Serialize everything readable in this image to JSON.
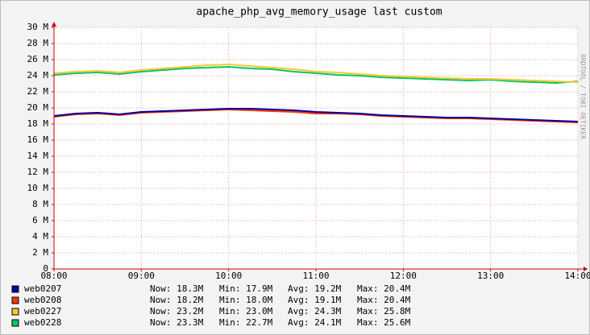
{
  "chart_data": {
    "type": "line",
    "title": "apache_php_avg_memory_usage last custom",
    "watermark": "RRDTOOL / TOBI OETIKER",
    "x": [
      "08:00",
      "08:15",
      "08:30",
      "08:45",
      "09:00",
      "09:15",
      "09:30",
      "09:45",
      "10:00",
      "10:15",
      "10:30",
      "10:45",
      "11:00",
      "11:15",
      "11:30",
      "11:45",
      "12:00",
      "12:15",
      "12:30",
      "12:45",
      "13:00",
      "13:15",
      "13:30",
      "13:45",
      "14:00"
    ],
    "xlim": [
      "08:00",
      "14:00"
    ],
    "xticks": [
      "08:00",
      "09:00",
      "10:00",
      "11:00",
      "12:00",
      "13:00",
      "14:00"
    ],
    "ylim": [
      0,
      30
    ],
    "yticks": [
      {
        "value": 0,
        "label": "0"
      },
      {
        "value": 2,
        "label": "2 M"
      },
      {
        "value": 4,
        "label": "4 M"
      },
      {
        "value": 6,
        "label": "6 M"
      },
      {
        "value": 8,
        "label": "8 M"
      },
      {
        "value": 10,
        "label": "10 M"
      },
      {
        "value": 12,
        "label": "12 M"
      },
      {
        "value": 14,
        "label": "14 M"
      },
      {
        "value": 16,
        "label": "16 M"
      },
      {
        "value": 18,
        "label": "18 M"
      },
      {
        "value": 20,
        "label": "20 M"
      },
      {
        "value": 22,
        "label": "22 M"
      },
      {
        "value": 24,
        "label": "24 M"
      },
      {
        "value": 26,
        "label": "26 M"
      },
      {
        "value": 28,
        "label": "28 M"
      },
      {
        "value": 30,
        "label": "30 M"
      }
    ],
    "grid": true,
    "series": [
      {
        "name": "web0207",
        "color": "#0000a0",
        "values": [
          19.0,
          19.3,
          19.4,
          19.2,
          19.5,
          19.6,
          19.7,
          19.8,
          19.9,
          19.9,
          19.8,
          19.7,
          19.5,
          19.4,
          19.3,
          19.1,
          19.0,
          18.9,
          18.8,
          18.8,
          18.7,
          18.6,
          18.5,
          18.4,
          18.3
        ],
        "stats": [
          "Now: 18.3M",
          "Min: 17.9M",
          "Avg: 19.2M",
          "Max: 20.4M"
        ]
      },
      {
        "name": "web0208",
        "color": "#ff3300",
        "values": [
          18.9,
          19.2,
          19.3,
          19.1,
          19.4,
          19.5,
          19.6,
          19.7,
          19.8,
          19.7,
          19.6,
          19.5,
          19.3,
          19.3,
          19.2,
          19.0,
          18.9,
          18.8,
          18.7,
          18.7,
          18.6,
          18.5,
          18.4,
          18.3,
          18.2
        ],
        "stats": [
          "Now: 18.2M",
          "Min: 18.0M",
          "Avg: 19.1M",
          "Max: 20.4M"
        ]
      },
      {
        "name": "web0227",
        "color": "#ffc633",
        "values": [
          24.3,
          24.5,
          24.6,
          24.4,
          24.7,
          24.9,
          25.1,
          25.3,
          25.4,
          25.2,
          25.0,
          24.8,
          24.5,
          24.4,
          24.2,
          24.0,
          23.9,
          23.8,
          23.7,
          23.6,
          23.6,
          23.5,
          23.4,
          23.3,
          23.2
        ],
        "stats": [
          "Now: 23.2M",
          "Min: 23.0M",
          "Avg: 24.3M",
          "Max: 25.8M"
        ]
      },
      {
        "name": "web0228",
        "color": "#00c864",
        "values": [
          24.1,
          24.3,
          24.4,
          24.2,
          24.5,
          24.7,
          24.9,
          25.0,
          25.1,
          24.9,
          24.8,
          24.5,
          24.3,
          24.1,
          24.0,
          23.8,
          23.7,
          23.6,
          23.5,
          23.4,
          23.5,
          23.3,
          23.2,
          23.1,
          23.3
        ],
        "stats": [
          "Now: 23.3M",
          "Min: 22.7M",
          "Avg: 24.1M",
          "Max: 25.6M"
        ]
      }
    ]
  }
}
